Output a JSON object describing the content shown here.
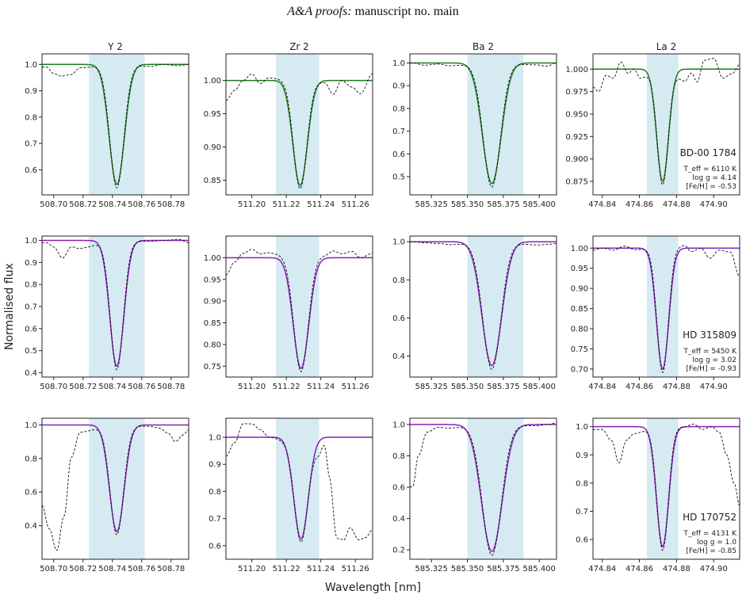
{
  "header": {
    "journal": "A&A proofs:",
    "manuscript": "manuscript no. main"
  },
  "axis_labels": {
    "ylabel": "Normalised flux",
    "xlabel": "Wavelength [nm]"
  },
  "colors": {
    "row1_model": "#1e7b1e",
    "row2_model": "#8a1fb8",
    "row3_model": "#8a1fb8",
    "observed": "#111111",
    "band": "#d6eaf2"
  },
  "chart_data": [
    {
      "type": "line",
      "title": "Y 2",
      "row": 1,
      "col": 1,
      "xlim": [
        508.692,
        508.792
      ],
      "ylim": [
        0.505,
        1.04
      ],
      "xticks": [
        508.7,
        508.72,
        508.74,
        508.76,
        508.78
      ],
      "xtick_labels": [
        "508.70",
        "508.72",
        "508.74",
        "508.76",
        "508.78"
      ],
      "yticks": [
        0.6,
        0.7,
        0.8,
        0.9,
        1.0
      ],
      "ytick_labels": [
        "0.6",
        "0.7",
        "0.8",
        "0.9",
        "1.0"
      ],
      "band": [
        508.724,
        508.762
      ],
      "center": 508.743,
      "depth": 0.455,
      "sigma": 0.0052,
      "observed_wiggles": [
        [
          508.695,
          0.99
        ],
        [
          508.7,
          0.965
        ],
        [
          508.705,
          0.955
        ],
        [
          508.712,
          0.96
        ],
        [
          508.718,
          0.985
        ],
        [
          508.765,
          0.99
        ],
        [
          508.775,
          1.0
        ],
        [
          508.785,
          0.995
        ],
        [
          508.792,
          1.0
        ]
      ],
      "series": [
        {
          "style": "observed"
        },
        {
          "style": "model"
        }
      ]
    },
    {
      "type": "line",
      "title": "Zr 2",
      "row": 1,
      "col": 2,
      "xlim": [
        511.185,
        511.27
      ],
      "ylim": [
        0.828,
        1.04
      ],
      "xticks": [
        511.2,
        511.22,
        511.24,
        511.26
      ],
      "xtick_labels": [
        "511.20",
        "511.22",
        "511.24",
        "511.26"
      ],
      "yticks": [
        0.85,
        0.9,
        0.95,
        1.0
      ],
      "ytick_labels": [
        "0.85",
        "0.90",
        "0.95",
        "1.00"
      ],
      "band": [
        511.214,
        511.239
      ],
      "center": 511.228,
      "depth": 0.158,
      "sigma": 0.0042,
      "observed_wiggles": [
        [
          511.185,
          0.97
        ],
        [
          511.19,
          0.985
        ],
        [
          511.195,
          1.0
        ],
        [
          511.2,
          1.01
        ],
        [
          511.205,
          0.995
        ],
        [
          511.21,
          1.005
        ],
        [
          511.242,
          0.995
        ],
        [
          511.247,
          0.975
        ],
        [
          511.252,
          1.0
        ],
        [
          511.258,
          0.99
        ],
        [
          511.263,
          0.98
        ],
        [
          511.27,
          1.01
        ]
      ],
      "series": [
        {
          "style": "observed"
        },
        {
          "style": "model"
        }
      ]
    },
    {
      "type": "line",
      "title": "Ba 2",
      "row": 1,
      "col": 3,
      "xlim": [
        585.31,
        585.412
      ],
      "ylim": [
        0.42,
        1.04
      ],
      "xticks": [
        585.325,
        585.35,
        585.375,
        585.4
      ],
      "xtick_labels": [
        "585.325",
        "585.350",
        "585.375",
        "585.400"
      ],
      "yticks": [
        0.5,
        0.6,
        0.7,
        0.8,
        0.9,
        1.0
      ],
      "ytick_labels": [
        "0.5",
        "0.6",
        "0.7",
        "0.8",
        "0.9",
        "1.0"
      ],
      "band": [
        585.35,
        585.389
      ],
      "center": 585.367,
      "depth": 0.53,
      "sigma": 0.0065,
      "observed_wiggles": [
        [
          585.312,
          1.0
        ],
        [
          585.32,
          0.99
        ],
        [
          585.33,
          0.995
        ],
        [
          585.338,
          0.985
        ],
        [
          585.398,
          0.99
        ],
        [
          585.405,
          0.985
        ],
        [
          585.412,
          1.0
        ]
      ],
      "series": [
        {
          "style": "observed"
        },
        {
          "style": "model"
        }
      ]
    },
    {
      "type": "line",
      "title": "La 2",
      "row": 1,
      "col": 4,
      "xlim": [
        474.835,
        474.914
      ],
      "ylim": [
        0.86,
        1.017
      ],
      "xticks": [
        474.84,
        474.86,
        474.88,
        474.9
      ],
      "xtick_labels": [
        "474.84",
        "474.86",
        "474.88",
        "474.90"
      ],
      "yticks": [
        0.875,
        0.9,
        0.925,
        0.95,
        0.975,
        1.0
      ],
      "ytick_labels": [
        "0.875",
        "0.900",
        "0.925",
        "0.950",
        "0.975",
        "1.000"
      ],
      "band": [
        474.864,
        474.881
      ],
      "center": 474.8725,
      "depth": 0.125,
      "sigma": 0.0032,
      "observed_wiggles": [
        [
          474.835,
          0.98
        ],
        [
          474.838,
          0.975
        ],
        [
          474.842,
          0.993
        ],
        [
          474.846,
          0.99
        ],
        [
          474.85,
          1.008
        ],
        [
          474.854,
          0.995
        ],
        [
          474.857,
          1.0
        ],
        [
          474.861,
          0.985
        ],
        [
          474.884,
          0.98
        ],
        [
          474.888,
          0.995
        ],
        [
          474.891,
          0.985
        ],
        [
          474.895,
          1.01
        ],
        [
          474.9,
          1.012
        ],
        [
          474.905,
          0.99
        ],
        [
          474.91,
          0.995
        ],
        [
          474.914,
          1.005
        ]
      ],
      "star": "BD-00 1784",
      "teff": "T_eff = 6110 K",
      "logg": "log g = 4.14",
      "feh": "[Fe/H] = -0.53",
      "series": [
        {
          "style": "observed"
        },
        {
          "style": "model"
        }
      ]
    },
    {
      "type": "line",
      "title": "",
      "row": 2,
      "col": 1,
      "xlim": [
        508.692,
        508.792
      ],
      "ylim": [
        0.38,
        1.02
      ],
      "xticks": [
        508.7,
        508.72,
        508.74,
        508.76,
        508.78
      ],
      "xtick_labels": [
        "508.70",
        "508.72",
        "508.74",
        "508.76",
        "508.78"
      ],
      "yticks": [
        0.4,
        0.5,
        0.6,
        0.7,
        0.8,
        0.9,
        1.0
      ],
      "ytick_labels": [
        "0.4",
        "0.5",
        "0.6",
        "0.7",
        "0.8",
        "0.9",
        "1.0"
      ],
      "band": [
        508.724,
        508.762
      ],
      "center": 508.743,
      "depth": 0.57,
      "sigma": 0.0048,
      "observed_wiggles": [
        [
          508.695,
          0.99
        ],
        [
          508.7,
          0.97
        ],
        [
          508.706,
          0.92
        ],
        [
          508.712,
          0.97
        ],
        [
          508.718,
          0.96
        ],
        [
          508.765,
          0.995
        ],
        [
          508.775,
          1.0
        ],
        [
          508.785,
          1.005
        ],
        [
          508.792,
          0.99
        ]
      ],
      "series": [
        {
          "style": "observed"
        },
        {
          "style": "model"
        }
      ]
    },
    {
      "type": "line",
      "title": "",
      "row": 2,
      "col": 2,
      "xlim": [
        511.185,
        511.27
      ],
      "ylim": [
        0.725,
        1.05
      ],
      "xticks": [
        511.2,
        511.22,
        511.24,
        511.26
      ],
      "xtick_labels": [
        "511.20",
        "511.22",
        "511.24",
        "511.26"
      ],
      "yticks": [
        0.75,
        0.8,
        0.85,
        0.9,
        0.95,
        1.0
      ],
      "ytick_labels": [
        "0.75",
        "0.80",
        "0.85",
        "0.90",
        "0.95",
        "1.00"
      ],
      "band": [
        511.214,
        511.239
      ],
      "center": 511.2285,
      "depth": 0.255,
      "sigma": 0.0045,
      "observed_wiggles": [
        [
          511.185,
          0.96
        ],
        [
          511.19,
          0.99
        ],
        [
          511.195,
          1.01
        ],
        [
          511.2,
          1.02
        ],
        [
          511.205,
          1.01
        ],
        [
          511.21,
          1.015
        ],
        [
          511.242,
          1.01
        ],
        [
          511.247,
          1.02
        ],
        [
          511.252,
          1.01
        ],
        [
          511.258,
          1.015
        ],
        [
          511.263,
          1.0
        ],
        [
          511.27,
          1.01
        ]
      ],
      "series": [
        {
          "style": "observed"
        },
        {
          "style": "model"
        }
      ]
    },
    {
      "type": "line",
      "title": "",
      "row": 2,
      "col": 3,
      "xlim": [
        585.31,
        585.412
      ],
      "ylim": [
        0.29,
        1.03
      ],
      "xticks": [
        585.325,
        585.35,
        585.375,
        585.4
      ],
      "xtick_labels": [
        "585.325",
        "585.350",
        "585.375",
        "585.400"
      ],
      "yticks": [
        0.4,
        0.6,
        0.8,
        1.0
      ],
      "ytick_labels": [
        "0.4",
        "0.6",
        "0.8",
        "1.0"
      ],
      "band": [
        585.35,
        585.389
      ],
      "center": 585.367,
      "depth": 0.65,
      "sigma": 0.0068,
      "observed_wiggles": [
        [
          585.312,
          1.0
        ],
        [
          585.32,
          0.995
        ],
        [
          585.33,
          0.99
        ],
        [
          585.34,
          0.98
        ],
        [
          585.398,
          0.98
        ],
        [
          585.405,
          0.985
        ],
        [
          585.412,
          0.99
        ]
      ],
      "series": [
        {
          "style": "observed"
        },
        {
          "style": "model"
        }
      ]
    },
    {
      "type": "line",
      "title": "",
      "row": 2,
      "col": 4,
      "xlim": [
        474.835,
        474.914
      ],
      "ylim": [
        0.68,
        1.03
      ],
      "xticks": [
        474.84,
        474.86,
        474.88,
        474.9
      ],
      "xtick_labels": [
        "474.84",
        "474.86",
        "474.88",
        "474.90"
      ],
      "yticks": [
        0.7,
        0.75,
        0.8,
        0.85,
        0.9,
        0.95,
        1.0
      ],
      "ytick_labels": [
        "0.70",
        "0.75",
        "0.80",
        "0.85",
        "0.90",
        "0.95",
        "1.00"
      ],
      "band": [
        474.864,
        474.881
      ],
      "center": 474.8725,
      "depth": 0.3,
      "sigma": 0.0033,
      "observed_wiggles": [
        [
          474.835,
          0.995
        ],
        [
          474.84,
          1.0
        ],
        [
          474.846,
          0.995
        ],
        [
          474.852,
          1.005
        ],
        [
          474.858,
          0.995
        ],
        [
          474.884,
          1.01
        ],
        [
          474.888,
          0.99
        ],
        [
          474.893,
          1.0
        ],
        [
          474.898,
          0.975
        ],
        [
          474.903,
          0.995
        ],
        [
          474.909,
          0.99
        ],
        [
          474.914,
          0.93
        ]
      ],
      "star": "HD 315809",
      "teff": "T_eff = 5450 K",
      "logg": "log g = 3.02",
      "feh": "[Fe/H] = -0.93",
      "series": [
        {
          "style": "observed"
        },
        {
          "style": "model"
        }
      ]
    },
    {
      "type": "line",
      "title": "",
      "row": 3,
      "col": 1,
      "xlim": [
        508.692,
        508.792
      ],
      "ylim": [
        0.2,
        1.04
      ],
      "xticks": [
        508.7,
        508.72,
        508.74,
        508.76,
        508.78
      ],
      "xtick_labels": [
        "508.70",
        "508.72",
        "508.74",
        "508.76",
        "508.78"
      ],
      "yticks": [
        0.4,
        0.6,
        0.8,
        1.0
      ],
      "ytick_labels": [
        "0.4",
        "0.6",
        "0.8",
        "1.0"
      ],
      "band": [
        508.724,
        508.762
      ],
      "center": 508.743,
      "depth": 0.635,
      "sigma": 0.005,
      "observed_wiggles": [
        [
          508.692,
          0.52
        ],
        [
          508.697,
          0.38
        ],
        [
          508.702,
          0.25
        ],
        [
          508.707,
          0.45
        ],
        [
          508.712,
          0.8
        ],
        [
          508.718,
          0.95
        ],
        [
          508.765,
          0.99
        ],
        [
          508.772,
          0.98
        ],
        [
          508.778,
          0.95
        ],
        [
          508.783,
          0.9
        ],
        [
          508.788,
          0.94
        ],
        [
          508.792,
          0.97
        ]
      ],
      "series": [
        {
          "style": "observed"
        },
        {
          "style": "model"
        }
      ]
    },
    {
      "type": "line",
      "title": "",
      "row": 3,
      "col": 2,
      "xlim": [
        511.185,
        511.27
      ],
      "ylim": [
        0.55,
        1.07
      ],
      "xticks": [
        511.2,
        511.22,
        511.24,
        511.26
      ],
      "xtick_labels": [
        "511.20",
        "511.22",
        "511.24",
        "511.26"
      ],
      "yticks": [
        0.6,
        0.7,
        0.8,
        0.9,
        1.0
      ],
      "ytick_labels": [
        "0.6",
        "0.7",
        "0.8",
        "0.9",
        "1.0"
      ],
      "band": [
        511.214,
        511.239
      ],
      "center": 511.2285,
      "depth": 0.375,
      "sigma": 0.0042,
      "observed_wiggles": [
        [
          511.185,
          0.93
        ],
        [
          511.19,
          0.98
        ],
        [
          511.195,
          1.05
        ],
        [
          511.2,
          1.05
        ],
        [
          511.205,
          1.03
        ],
        [
          511.21,
          1.0
        ],
        [
          511.238,
          0.85
        ],
        [
          511.242,
          0.95
        ],
        [
          511.245,
          0.8
        ],
        [
          511.249,
          0.58
        ],
        [
          511.253,
          0.6
        ],
        [
          511.257,
          0.66
        ],
        [
          511.262,
          0.62
        ],
        [
          511.266,
          0.63
        ],
        [
          511.27,
          0.66
        ]
      ],
      "series": [
        {
          "style": "observed"
        },
        {
          "style": "model"
        }
      ]
    },
    {
      "type": "line",
      "title": "",
      "row": 3,
      "col": 3,
      "xlim": [
        585.31,
        585.412
      ],
      "ylim": [
        0.14,
        1.04
      ],
      "xticks": [
        585.325,
        585.35,
        585.375,
        585.4
      ],
      "xtick_labels": [
        "585.325",
        "585.350",
        "585.375",
        "585.400"
      ],
      "yticks": [
        0.2,
        0.4,
        0.6,
        0.8,
        1.0
      ],
      "ytick_labels": [
        "0.2",
        "0.4",
        "0.6",
        "0.8",
        "1.0"
      ],
      "band": [
        585.35,
        585.389
      ],
      "center": 585.367,
      "depth": 0.81,
      "sigma": 0.0072,
      "observed_wiggles": [
        [
          585.312,
          0.6
        ],
        [
          585.316,
          0.8
        ],
        [
          585.322,
          0.95
        ],
        [
          585.33,
          0.98
        ],
        [
          585.338,
          0.97
        ],
        [
          585.398,
          0.99
        ],
        [
          585.405,
          1.0
        ],
        [
          585.412,
          1.01
        ]
      ],
      "series": [
        {
          "style": "observed"
        },
        {
          "style": "model"
        }
      ]
    },
    {
      "type": "line",
      "title": "",
      "row": 3,
      "col": 4,
      "xlim": [
        474.835,
        474.914
      ],
      "ylim": [
        0.53,
        1.03
      ],
      "xticks": [
        474.84,
        474.86,
        474.88,
        474.9
      ],
      "xtick_labels": [
        "474.84",
        "474.86",
        "474.88",
        "474.90"
      ],
      "yticks": [
        0.6,
        0.7,
        0.8,
        0.9,
        1.0
      ],
      "ytick_labels": [
        "0.6",
        "0.7",
        "0.8",
        "0.9",
        "1.0"
      ],
      "band": [
        474.864,
        474.881
      ],
      "center": 474.8725,
      "depth": 0.425,
      "sigma": 0.0033,
      "observed_wiggles": [
        [
          474.835,
          0.99
        ],
        [
          474.84,
          0.99
        ],
        [
          474.845,
          0.95
        ],
        [
          474.849,
          0.87
        ],
        [
          474.853,
          0.95
        ],
        [
          474.857,
          0.97
        ],
        [
          474.884,
          1.0
        ],
        [
          474.889,
          1.01
        ],
        [
          474.894,
          0.99
        ],
        [
          474.899,
          1.0
        ],
        [
          474.903,
          0.98
        ],
        [
          474.907,
          0.9
        ],
        [
          474.911,
          0.8
        ],
        [
          474.914,
          0.72
        ]
      ],
      "star": "HD 170752",
      "teff": "T_eff = 4131 K",
      "logg": "log g = 1.0",
      "feh": "[Fe/H] = -0.85",
      "series": [
        {
          "style": "observed"
        },
        {
          "style": "model"
        }
      ]
    }
  ]
}
